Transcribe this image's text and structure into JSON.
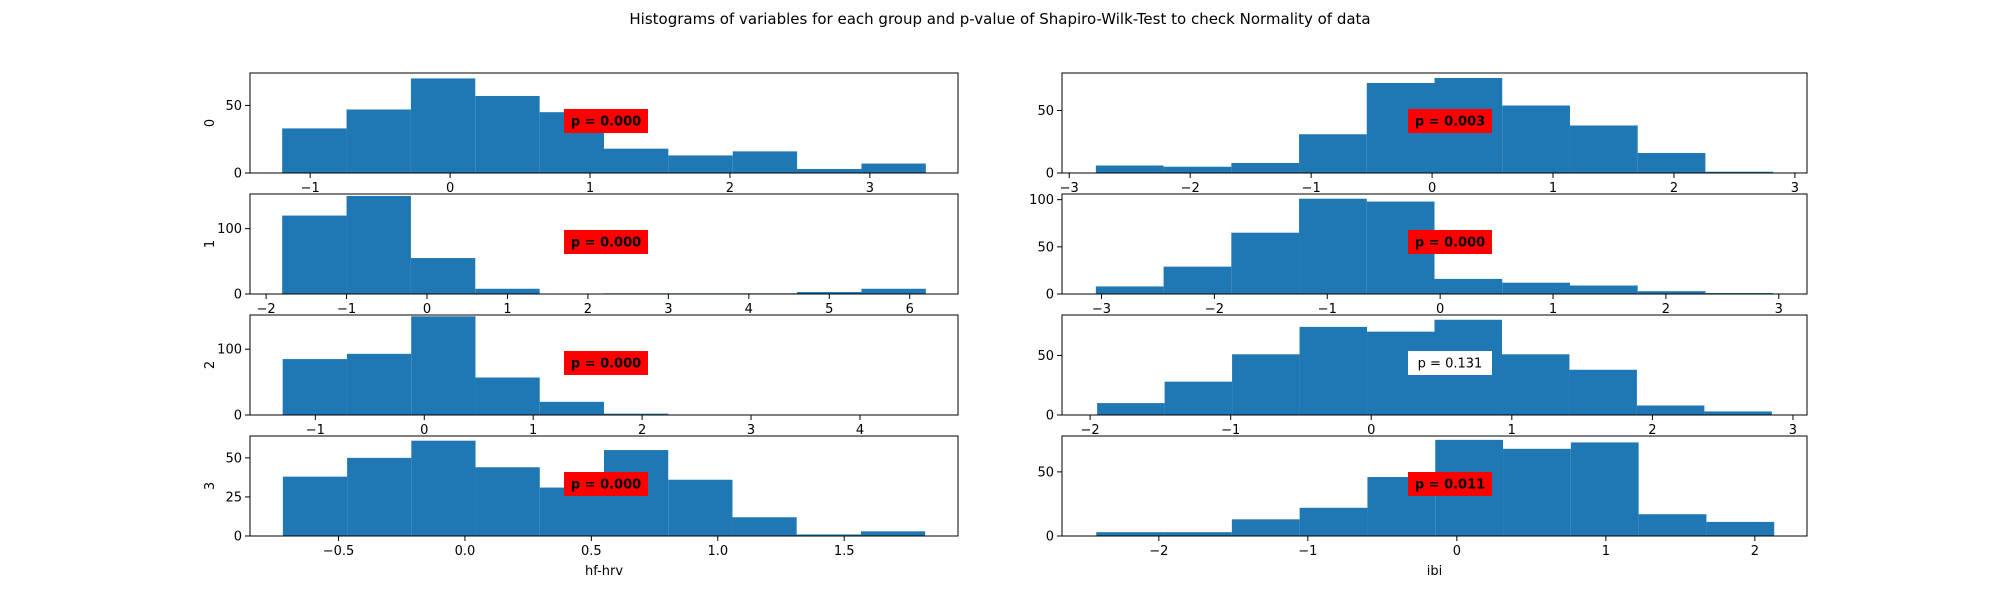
{
  "chart_data": {
    "title": "Histograms of variables for each group and p-value of Shapiro-Wilk-Test to check Normality of data",
    "columns": [
      "hf-hrv",
      "ibi"
    ],
    "rows": [
      "0",
      "1",
      "2",
      "3"
    ],
    "colors": {
      "bar": "#1f77b4",
      "significant": "#ff0000",
      "not_significant": "#ffffff"
    },
    "panels": [
      {
        "type": "bar",
        "row": "0",
        "column": "hf-hrv",
        "bins": [
          -1.2,
          -0.74,
          -0.28,
          0.18,
          0.64,
          1.1,
          1.56,
          2.02,
          2.48,
          2.94,
          3.4
        ],
        "counts": [
          33,
          47,
          70,
          57,
          45,
          18,
          13,
          16,
          3,
          7
        ],
        "xlim": [
          -1.43,
          3.63
        ],
        "ylim": [
          0,
          74
        ],
        "xticks": [
          "-1",
          "0",
          "1",
          "2",
          "3"
        ],
        "yticks": [
          "0",
          "50"
        ],
        "pvalue_label": "p = 0.000",
        "significant": true
      },
      {
        "type": "bar",
        "row": "0",
        "column": "ibi",
        "bins": [
          -2.78,
          -2.22,
          -1.66,
          -1.1,
          -0.54,
          0.02,
          0.58,
          1.14,
          1.7,
          2.26,
          2.82
        ],
        "counts": [
          6,
          5,
          8,
          31,
          72,
          76,
          54,
          38,
          16,
          1
        ],
        "xlim": [
          -3.06,
          3.1
        ],
        "ylim": [
          0,
          80
        ],
        "xticks": [
          "-3",
          "-2",
          "-1",
          "0",
          "1",
          "2",
          "3"
        ],
        "yticks": [
          "0",
          "50"
        ],
        "pvalue_label": "p = 0.003",
        "significant": true
      },
      {
        "type": "bar",
        "row": "1",
        "column": "hf-hrv",
        "bins": [
          -1.8,
          -1.0,
          -0.2,
          0.6,
          1.4,
          2.2,
          3.0,
          3.8,
          4.6,
          5.4,
          6.2
        ],
        "counts": [
          120,
          150,
          55,
          8,
          0,
          1,
          1,
          1,
          3,
          8
        ],
        "xlim": [
          -2.2,
          6.6
        ],
        "ylim": [
          0,
          153
        ],
        "xticks": [
          "-2",
          "-1",
          "0",
          "1",
          "2",
          "3",
          "4",
          "5",
          "6"
        ],
        "yticks": [
          "0",
          "100"
        ],
        "pvalue_label": "p = 0.000",
        "significant": true
      },
      {
        "type": "bar",
        "row": "1",
        "column": "ibi",
        "bins": [
          -3.05,
          -2.45,
          -1.85,
          -1.25,
          -0.65,
          -0.05,
          0.55,
          1.15,
          1.75,
          2.35,
          2.95
        ],
        "counts": [
          8,
          29,
          65,
          101,
          98,
          16,
          12,
          9,
          3,
          1
        ],
        "xlim": [
          -3.35,
          3.25
        ],
        "ylim": [
          0,
          106
        ],
        "xticks": [
          "-3",
          "-2",
          "-1",
          "0",
          "1",
          "2",
          "3"
        ],
        "yticks": [
          "0",
          "50",
          "100"
        ],
        "pvalue_label": "p = 0.000",
        "significant": true
      },
      {
        "type": "bar",
        "row": "2",
        "column": "hf-hrv",
        "bins": [
          -1.3,
          -0.71,
          -0.12,
          0.47,
          1.06,
          1.65,
          2.24,
          2.83,
          3.42,
          4.01,
          4.6
        ],
        "counts": [
          85,
          93,
          150,
          57,
          20,
          2,
          0,
          0,
          0,
          0
        ],
        "xlim": [
          -1.6,
          4.9
        ],
        "ylim": [
          0,
          152
        ],
        "xticks": [
          "-1",
          "0",
          "1",
          "2",
          "3",
          "4"
        ],
        "yticks": [
          "0",
          "100"
        ],
        "pvalue_label": "p = 0.000",
        "significant": true
      },
      {
        "type": "bar",
        "row": "2",
        "column": "ibi",
        "bins": [
          -1.95,
          -1.47,
          -0.99,
          -0.51,
          -0.03,
          0.45,
          0.93,
          1.41,
          1.89,
          2.37,
          2.85
        ],
        "counts": [
          10,
          28,
          51,
          74,
          70,
          80,
          51,
          38,
          8,
          3
        ],
        "xlim": [
          -2.2,
          3.1
        ],
        "ylim": [
          0,
          84
        ],
        "xticks": [
          "-2",
          "-1",
          "0",
          "1",
          "2",
          "3"
        ],
        "yticks": [
          "0",
          "50"
        ],
        "pvalue_label": "p = 0.131",
        "significant": false
      },
      {
        "type": "bar",
        "row": "3",
        "column": "hf-hrv",
        "bins": [
          -0.72,
          -0.466,
          -0.212,
          0.042,
          0.296,
          0.55,
          0.804,
          1.058,
          1.312,
          1.566,
          1.82
        ],
        "counts": [
          38,
          50,
          61,
          44,
          31,
          55,
          36,
          12,
          1,
          3
        ],
        "xlim": [
          -0.85,
          1.95
        ],
        "ylim": [
          0,
          64
        ],
        "xticks": [
          "-0.5",
          "0.0",
          "0.5",
          "1.0",
          "1.5"
        ],
        "yticks": [
          "0",
          "25",
          "50"
        ],
        "pvalue_label": "p = 0.000",
        "significant": true
      },
      {
        "type": "bar",
        "row": "3",
        "column": "ibi",
        "bins": [
          -2.42,
          -1.965,
          -1.51,
          -1.055,
          -0.6,
          -0.145,
          0.31,
          0.765,
          1.22,
          1.675,
          2.13
        ],
        "counts": [
          3,
          3,
          13,
          22,
          46,
          75,
          68,
          73,
          17,
          11
        ],
        "xlim": [
          -2.65,
          2.35
        ],
        "ylim": [
          0,
          78
        ],
        "xticks": [
          "-2",
          "-1",
          "0",
          "1",
          "2"
        ],
        "yticks": [
          "0",
          "50"
        ],
        "pvalue_label": "p = 0.011",
        "significant": true
      }
    ]
  }
}
